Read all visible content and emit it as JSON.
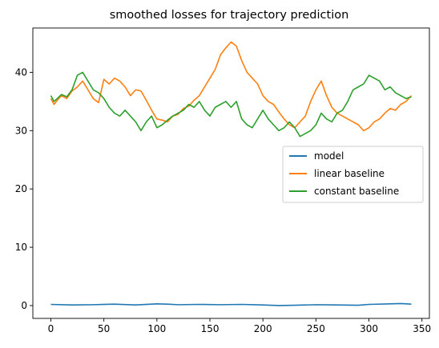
{
  "chart_data": {
    "type": "line",
    "title": "smoothed losses for trajectory prediction",
    "xlabel": "",
    "ylabel": "",
    "xlim": [
      -17,
      357
    ],
    "ylim": [
      -2.2,
      47.6
    ],
    "xticks": [
      0,
      50,
      100,
      150,
      200,
      250,
      300,
      350
    ],
    "yticks": [
      0,
      10,
      20,
      30,
      40
    ],
    "grid": false,
    "legend_position": "center-right",
    "series": [
      {
        "name": "model",
        "color": "#1f77b4",
        "x": [
          0,
          20,
          40,
          60,
          80,
          100,
          110,
          120,
          140,
          160,
          180,
          200,
          215,
          230,
          250,
          270,
          290,
          300,
          320,
          330,
          340
        ],
        "y": [
          0.2,
          0.1,
          0.15,
          0.25,
          0.1,
          0.3,
          0.25,
          0.15,
          0.2,
          0.15,
          0.2,
          0.1,
          0.0,
          0.05,
          0.15,
          0.1,
          0.05,
          0.2,
          0.3,
          0.35,
          0.25
        ]
      },
      {
        "name": "linear baseline",
        "color": "#ff7f0e",
        "x": [
          0,
          3,
          6,
          10,
          15,
          20,
          25,
          30,
          35,
          40,
          45,
          50,
          55,
          60,
          65,
          70,
          75,
          80,
          85,
          90,
          95,
          100,
          105,
          110,
          115,
          120,
          125,
          130,
          135,
          140,
          145,
          150,
          155,
          160,
          165,
          170,
          175,
          180,
          185,
          190,
          195,
          200,
          205,
          210,
          215,
          220,
          225,
          230,
          235,
          240,
          245,
          250,
          255,
          260,
          265,
          270,
          275,
          280,
          285,
          290,
          295,
          300,
          305,
          310,
          315,
          320,
          325,
          330,
          335,
          340
        ],
        "y": [
          35.5,
          34.5,
          35.2,
          36.0,
          35.5,
          36.8,
          37.5,
          38.5,
          37.0,
          35.5,
          34.8,
          38.8,
          38.0,
          39.0,
          38.5,
          37.5,
          36.0,
          37.0,
          36.8,
          35.2,
          33.5,
          32.0,
          31.8,
          31.5,
          32.5,
          32.8,
          33.8,
          34.2,
          35.2,
          36.0,
          37.5,
          39.0,
          40.5,
          43.0,
          44.2,
          45.2,
          44.5,
          42.0,
          40.0,
          39.0,
          38.0,
          36.0,
          35.0,
          34.5,
          33.2,
          32.0,
          31.0,
          30.5,
          31.5,
          32.5,
          35.0,
          37.0,
          38.5,
          36.0,
          34.0,
          33.0,
          32.5,
          32.0,
          31.5,
          31.0,
          30.0,
          30.5,
          31.5,
          32.0,
          33.0,
          33.8,
          33.5,
          34.5,
          35.0,
          36.0
        ]
      },
      {
        "name": "constant baseline",
        "color": "#2ca02c",
        "x": [
          0,
          3,
          6,
          10,
          15,
          20,
          25,
          30,
          35,
          40,
          45,
          50,
          55,
          60,
          65,
          70,
          75,
          80,
          85,
          90,
          95,
          100,
          105,
          110,
          115,
          120,
          125,
          130,
          135,
          140,
          145,
          150,
          155,
          160,
          165,
          170,
          175,
          180,
          185,
          190,
          195,
          200,
          205,
          210,
          215,
          220,
          225,
          230,
          235,
          240,
          245,
          250,
          255,
          260,
          265,
          270,
          275,
          280,
          285,
          290,
          295,
          300,
          305,
          310,
          315,
          320,
          325,
          330,
          335,
          340
        ],
        "y": [
          36.0,
          35.0,
          35.5,
          36.2,
          35.8,
          37.0,
          39.5,
          40.0,
          38.5,
          37.0,
          36.5,
          35.5,
          34.0,
          33.0,
          32.5,
          33.5,
          32.5,
          31.5,
          30.0,
          31.5,
          32.5,
          30.5,
          31.0,
          31.8,
          32.5,
          33.0,
          33.5,
          34.5,
          34.0,
          35.0,
          33.5,
          32.5,
          34.0,
          34.5,
          35.0,
          34.0,
          35.0,
          32.0,
          31.0,
          30.5,
          32.0,
          33.5,
          32.0,
          31.0,
          30.0,
          30.5,
          31.5,
          30.5,
          29.0,
          29.5,
          30.0,
          31.0,
          33.0,
          32.0,
          31.5,
          33.0,
          33.5,
          35.0,
          37.0,
          37.5,
          38.0,
          39.5,
          39.0,
          38.5,
          37.0,
          37.5,
          36.5,
          36.0,
          35.5,
          35.8
        ]
      }
    ]
  }
}
